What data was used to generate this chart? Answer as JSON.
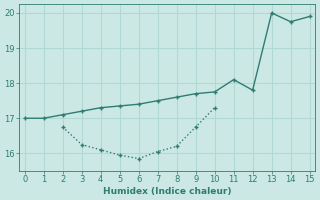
{
  "line1_x": [
    0,
    1,
    2,
    3,
    4,
    5,
    6,
    7,
    8,
    9,
    10,
    11,
    12,
    13,
    14,
    15
  ],
  "line1_y": [
    17.0,
    17.0,
    17.1,
    17.2,
    17.3,
    17.35,
    17.4,
    17.5,
    17.6,
    17.7,
    17.75,
    18.1,
    17.8,
    20.0,
    19.75,
    19.9
  ],
  "line2_x": [
    2,
    3,
    4,
    5,
    6,
    7,
    8,
    9,
    10
  ],
  "line2_y": [
    16.75,
    16.25,
    16.1,
    15.95,
    15.85,
    16.05,
    16.2,
    16.75,
    17.3
  ],
  "line_color": "#2e7d72",
  "bg_color": "#cce8e4",
  "grid_color": "#b0d8d4",
  "xlabel": "Humidex (Indice chaleur)",
  "xlim": [
    0,
    15
  ],
  "ylim": [
    15.5,
    20.25
  ],
  "yticks": [
    16,
    17,
    18,
    19,
    20
  ],
  "xticks": [
    0,
    1,
    2,
    3,
    4,
    5,
    6,
    7,
    8,
    9,
    10,
    11,
    12,
    13,
    14,
    15
  ]
}
